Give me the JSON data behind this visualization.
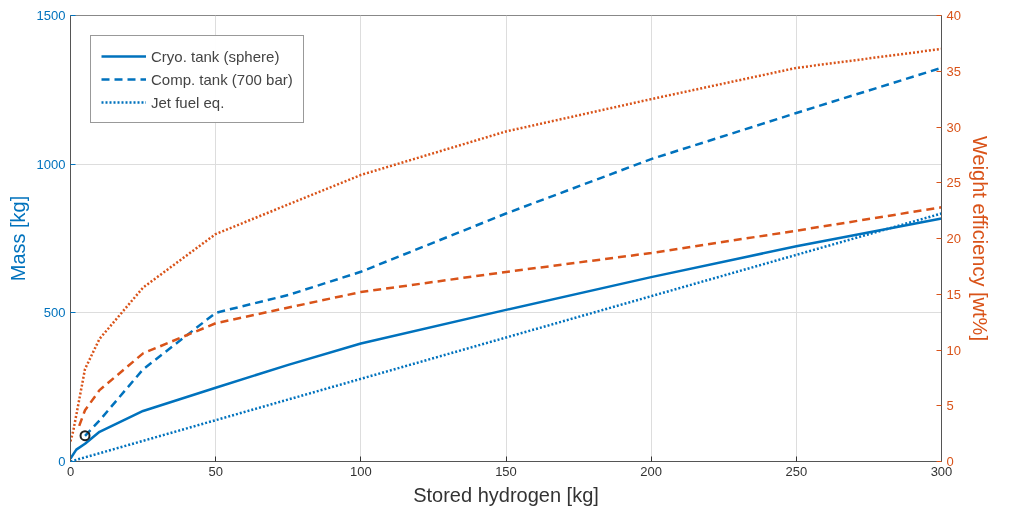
{
  "chart_data": {
    "type": "line",
    "xlabel": "Stored hydrogen [kg]",
    "ylabel": "Mass [kg]",
    "y2label": "Weight efficiency [wt%]",
    "xlim": [
      0,
      300
    ],
    "ylim": [
      0,
      1500
    ],
    "y2lim": [
      0,
      40
    ],
    "xticks": [
      0,
      50,
      100,
      150,
      200,
      250,
      300
    ],
    "yticks": [
      0,
      500,
      1000,
      1500
    ],
    "y2ticks": [
      0,
      5,
      10,
      15,
      20,
      25,
      30,
      35,
      40
    ],
    "grid": true,
    "legend": "top left",
    "series": [
      {
        "name": "Cryo. tank (sphere)",
        "line_style": "solid",
        "color": "#0072bd",
        "x": [
          0,
          2,
          5,
          10,
          25,
          50,
          75,
          100,
          150,
          200,
          250,
          300
        ],
        "values": [
          10,
          40,
          60,
          100,
          170,
          248,
          325,
          397,
          510,
          620,
          724,
          817
        ]
      },
      {
        "name": "Comp. tank (700 bar)",
        "line_style": "dashed",
        "color": "#0072bd",
        "x": [
          5,
          10,
          25,
          50,
          75,
          100,
          150,
          200,
          250,
          300
        ],
        "values": [
          86,
          138,
          310,
          500,
          560,
          638,
          834,
          1017,
          1172,
          1324
        ]
      },
      {
        "name": "Jet fuel eq.",
        "line_style": "dotted",
        "color": "#0072bd",
        "x": [
          0,
          300
        ],
        "values": [
          0,
          834
        ]
      },
      {
        "line_style": "dotted",
        "color": "#d95319",
        "axis": "y2",
        "x": [
          0,
          1,
          5,
          10,
          25,
          50,
          100,
          150,
          200,
          250,
          300
        ],
        "values": [
          1.8,
          2.8,
          8.3,
          11,
          15.6,
          20.4,
          25.7,
          29.6,
          32.5,
          35.3,
          37
        ]
      },
      {
        "line_style": "dashed",
        "color": "#d95319",
        "axis": "y2",
        "x": [
          3,
          5,
          10,
          25,
          50,
          100,
          150,
          200,
          250,
          300
        ],
        "values": [
          3.2,
          4.6,
          6.4,
          9.7,
          12.4,
          15.2,
          17,
          18.7,
          20.7,
          22.8
        ]
      },
      {
        "type": "scatter",
        "marker": "circle",
        "color": "#222222",
        "x": [
          5
        ],
        "values": [
          87
        ]
      }
    ]
  }
}
